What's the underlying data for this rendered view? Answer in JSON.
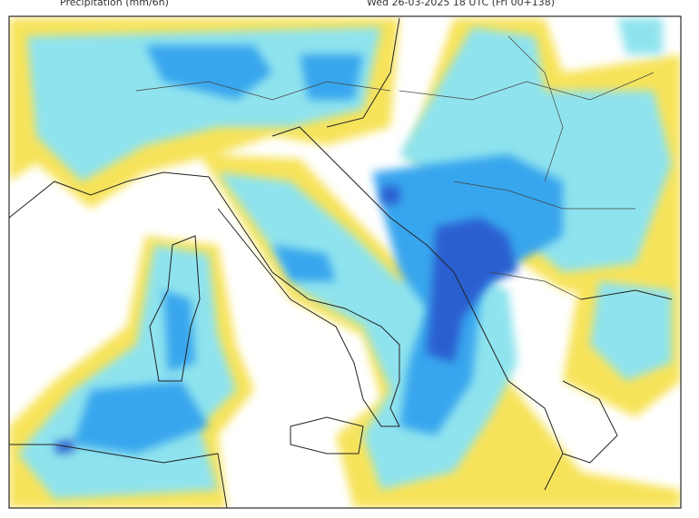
{
  "header": {
    "title": "Precipitation (mm/6h)",
    "timestamp": "Wed 26-03-2025 18 UTC (Fri 00+138)"
  }
}
